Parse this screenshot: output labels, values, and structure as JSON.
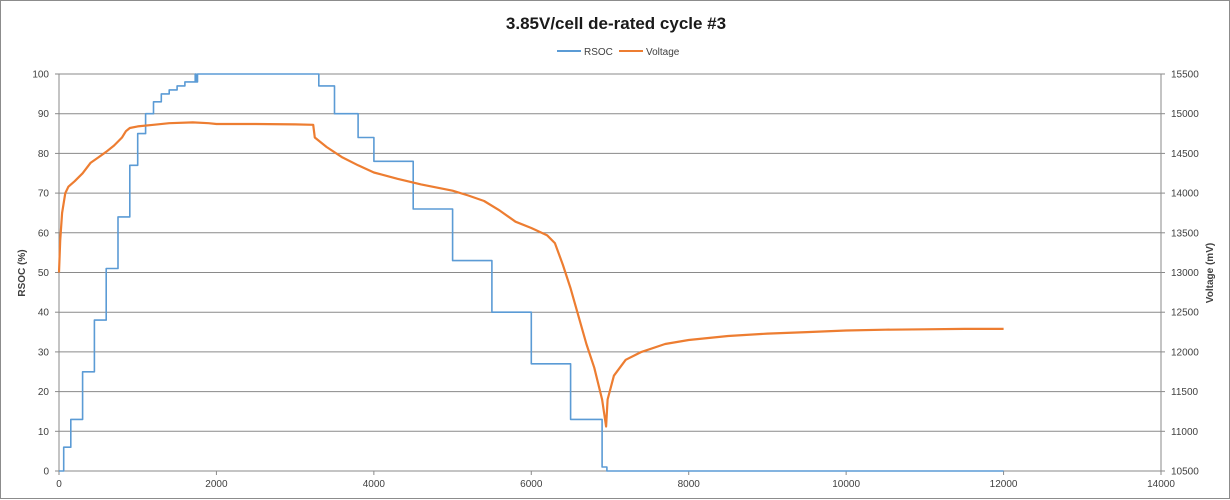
{
  "chart_data": {
    "type": "line",
    "title": "3.85V/cell de-rated cycle #3",
    "xlabel": "",
    "ylabel": "RSOC (%)",
    "y2label": "Voltage (mV)",
    "xlim": [
      0,
      14000
    ],
    "ylim": [
      0,
      100
    ],
    "y2lim": [
      10500,
      15500
    ],
    "x_ticks": [
      0,
      2000,
      4000,
      6000,
      8000,
      10000,
      12000,
      14000
    ],
    "y_ticks": [
      0,
      10,
      20,
      30,
      40,
      50,
      60,
      70,
      80,
      90,
      100
    ],
    "y2_ticks": [
      10500,
      11000,
      11500,
      12000,
      12500,
      13000,
      13500,
      14000,
      14500,
      15000,
      15500
    ],
    "grid": true,
    "legend_position": "top",
    "series": [
      {
        "name": "RSOC",
        "axis": "left",
        "color": "#5b9bd5",
        "points": [
          [
            0,
            0
          ],
          [
            60,
            6
          ],
          [
            150,
            13
          ],
          [
            300,
            25
          ],
          [
            450,
            38
          ],
          [
            600,
            51
          ],
          [
            750,
            64
          ],
          [
            900,
            77
          ],
          [
            1000,
            85
          ],
          [
            1100,
            90
          ],
          [
            1200,
            93
          ],
          [
            1300,
            95
          ],
          [
            1400,
            96
          ],
          [
            1500,
            97
          ],
          [
            1600,
            98
          ],
          [
            1720,
            98
          ],
          [
            1730,
            100
          ],
          [
            1740,
            98
          ],
          [
            1760,
            100
          ],
          [
            3200,
            100
          ],
          [
            3300,
            97
          ],
          [
            3500,
            90
          ],
          [
            3800,
            84
          ],
          [
            4000,
            78
          ],
          [
            4500,
            66
          ],
          [
            5000,
            53
          ],
          [
            5500,
            40
          ],
          [
            6000,
            27
          ],
          [
            6500,
            13
          ],
          [
            6900,
            1
          ],
          [
            6960,
            0
          ],
          [
            12000,
            0
          ]
        ]
      },
      {
        "name": "Voltage",
        "axis": "right",
        "color": "#ed7d31",
        "points": [
          [
            0,
            13000
          ],
          [
            15,
            13400
          ],
          [
            40,
            13750
          ],
          [
            80,
            14000
          ],
          [
            120,
            14080
          ],
          [
            200,
            14150
          ],
          [
            300,
            14250
          ],
          [
            400,
            14380
          ],
          [
            500,
            14450
          ],
          [
            600,
            14520
          ],
          [
            700,
            14600
          ],
          [
            800,
            14700
          ],
          [
            850,
            14780
          ],
          [
            900,
            14820
          ],
          [
            1000,
            14840
          ],
          [
            1200,
            14860
          ],
          [
            1400,
            14880
          ],
          [
            1700,
            14890
          ],
          [
            1900,
            14880
          ],
          [
            2000,
            14870
          ],
          [
            2500,
            14870
          ],
          [
            3000,
            14865
          ],
          [
            3230,
            14860
          ],
          [
            3250,
            14700
          ],
          [
            3400,
            14580
          ],
          [
            3600,
            14450
          ],
          [
            3800,
            14350
          ],
          [
            4000,
            14260
          ],
          [
            4300,
            14180
          ],
          [
            4600,
            14110
          ],
          [
            5000,
            14030
          ],
          [
            5200,
            13970
          ],
          [
            5400,
            13900
          ],
          [
            5600,
            13780
          ],
          [
            5800,
            13640
          ],
          [
            6000,
            13560
          ],
          [
            6200,
            13470
          ],
          [
            6300,
            13370
          ],
          [
            6400,
            13100
          ],
          [
            6500,
            12800
          ],
          [
            6600,
            12450
          ],
          [
            6700,
            12100
          ],
          [
            6800,
            11800
          ],
          [
            6900,
            11400
          ],
          [
            6950,
            11060
          ],
          [
            6970,
            11400
          ],
          [
            7050,
            11700
          ],
          [
            7200,
            11900
          ],
          [
            7400,
            12000
          ],
          [
            7700,
            12100
          ],
          [
            8000,
            12150
          ],
          [
            8500,
            12200
          ],
          [
            9000,
            12230
          ],
          [
            9500,
            12250
          ],
          [
            10000,
            12270
          ],
          [
            10500,
            12280
          ],
          [
            11000,
            12285
          ],
          [
            11500,
            12290
          ],
          [
            12000,
            12290
          ]
        ]
      }
    ]
  }
}
